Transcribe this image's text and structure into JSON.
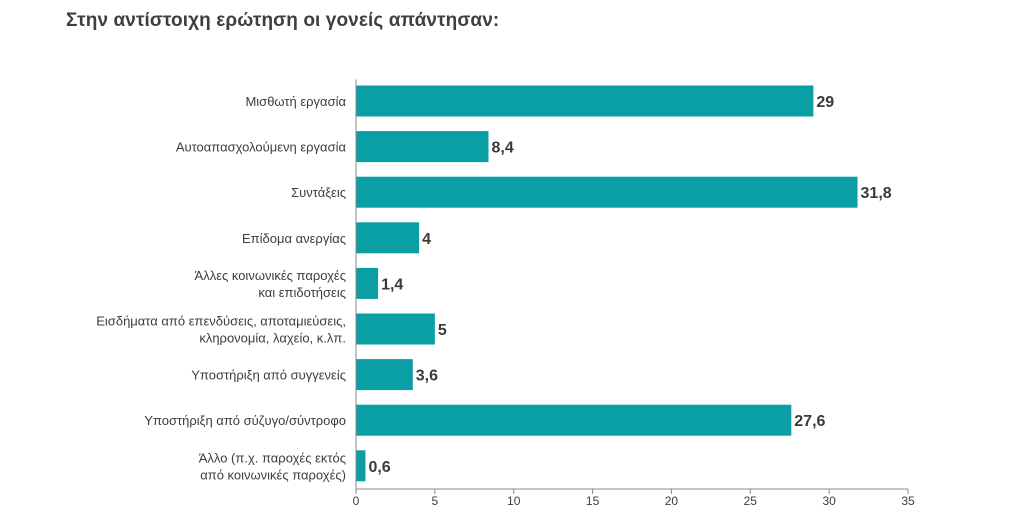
{
  "page": {
    "title": "Στην αντίστοιχη ερώτηση οι γονείς απάντησαν:"
  },
  "chart_data": {
    "type": "bar",
    "orientation": "horizontal",
    "title": "Στην αντίστοιχη ερώτηση οι γονείς απάντησαν:",
    "xlabel": "",
    "ylabel": "",
    "xlim": [
      0,
      35
    ],
    "x_ticks": [
      0,
      5,
      10,
      15,
      20,
      25,
      30,
      35
    ],
    "grid": false,
    "bar_color": "#0a9ea5",
    "categories": [
      [
        "Μισθωτή εργασία"
      ],
      [
        "Αυτοαπασχολούμενη εργασία"
      ],
      [
        "Συντάξεις"
      ],
      [
        "Επίδομα ανεργίας"
      ],
      [
        "Άλλες κοινωνικές παροχές",
        "και επιδοτήσεις"
      ],
      [
        "Εισδήματα από επενδύσεις, αποταμιεύσεις,",
        "κληρονομία, λαχείο, κ.λπ."
      ],
      [
        "Υποστήριξη από συγγενείς"
      ],
      [
        "Υποστήριξη από σύζυγο/σύντροφο"
      ],
      [
        "Άλλο (π.χ. παροχές εκτός",
        "από κοινωνικές παροχές)"
      ]
    ],
    "values": [
      29,
      8.4,
      31.8,
      4,
      1.4,
      5,
      3.6,
      27.6,
      0.6
    ],
    "value_labels": [
      "29",
      "8,4",
      "31,8",
      "4",
      "1,4",
      "5",
      "3,6",
      "27,6",
      "0,6"
    ]
  }
}
